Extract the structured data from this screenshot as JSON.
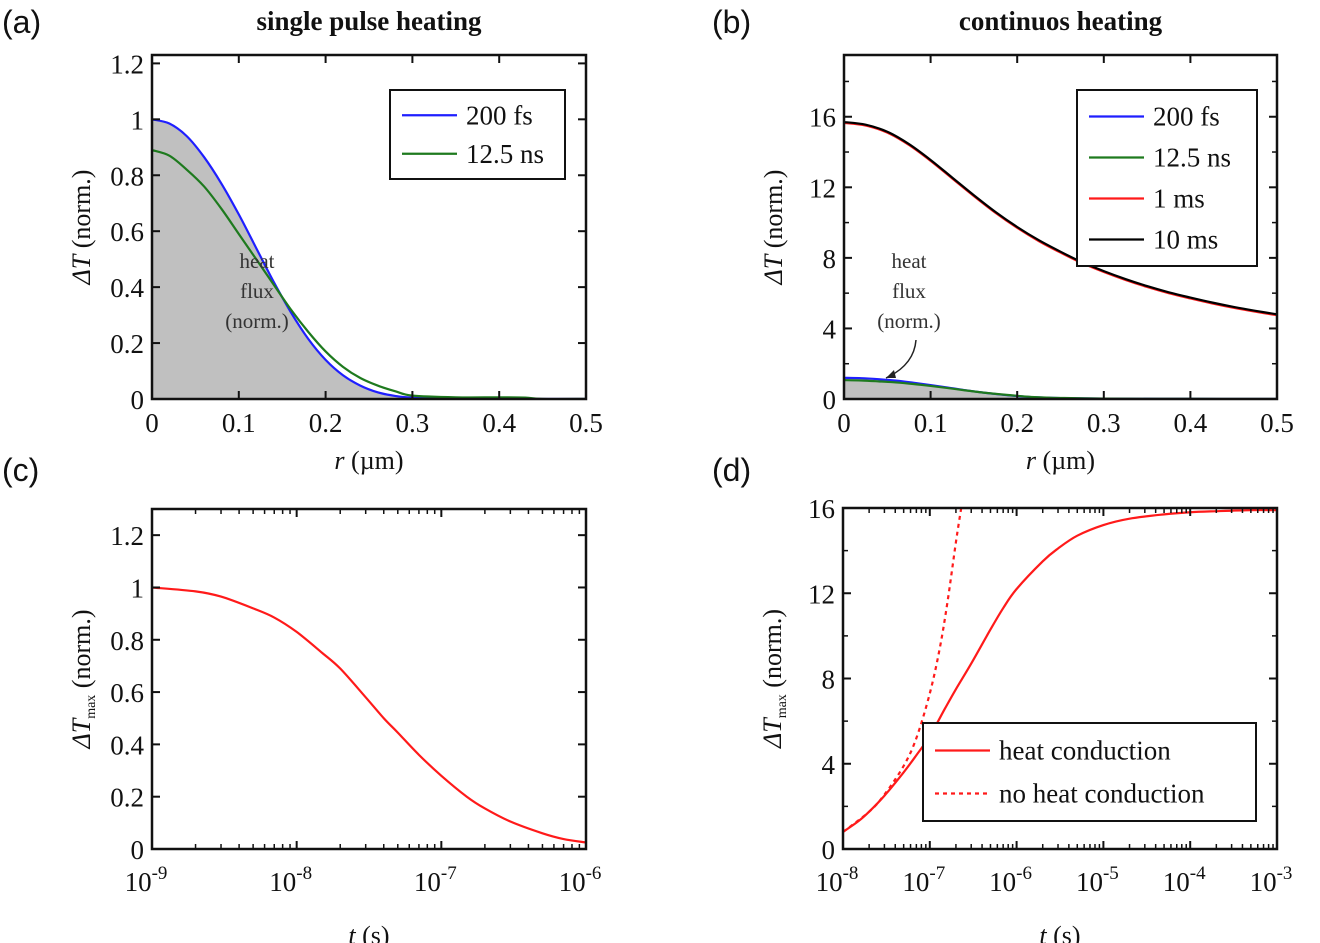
{
  "chart_data": [
    {
      "id": "a",
      "panel_label": "(a)",
      "type": "line",
      "title": "single pulse heating",
      "xlabel": "r (µm)",
      "xlabel_var": "r",
      "xlabel_unit": " (µm)",
      "ylabel": "ΔT (norm.)",
      "ylabel_var": "ΔT",
      "ylabel_unit": " (norm.)",
      "xscale": "linear",
      "xlim": [
        0,
        0.5
      ],
      "ylim": [
        0,
        1.23
      ],
      "xticks": [
        0,
        0.1,
        0.2,
        0.3,
        0.4,
        0.5
      ],
      "xtick_labels": [
        "0",
        "0.1",
        "0.2",
        "0.3",
        "0.4",
        "0.5"
      ],
      "yticks": [
        0,
        0.2,
        0.4,
        0.6,
        0.8,
        1,
        1.2
      ],
      "ytick_labels": [
        "0",
        "0.2",
        "0.4",
        "0.6",
        "0.8",
        "1",
        "1.2"
      ],
      "grid": false,
      "legend_position": "top-right",
      "area": {
        "name": "heat flux (norm.)",
        "color": "#c0c0c0",
        "x": [
          0,
          0.02,
          0.04,
          0.06,
          0.08,
          0.1,
          0.12,
          0.14,
          0.16,
          0.18,
          0.2,
          0.22,
          0.24,
          0.26,
          0.28,
          0.3,
          0.35,
          0.5
        ],
        "y": [
          1.0,
          0.985,
          0.94,
          0.865,
          0.77,
          0.66,
          0.54,
          0.42,
          0.31,
          0.215,
          0.14,
          0.085,
          0.045,
          0.022,
          0.01,
          0.004,
          0.0,
          0.0
        ]
      },
      "annotation": [
        "heat",
        "flux",
        "(norm.)"
      ],
      "series": [
        {
          "name": "200 fs",
          "color": "#1f1fff",
          "dash": false,
          "x": [
            0,
            0.02,
            0.04,
            0.06,
            0.08,
            0.1,
            0.12,
            0.14,
            0.16,
            0.18,
            0.2,
            0.22,
            0.24,
            0.26,
            0.28,
            0.3,
            0.35,
            0.4,
            0.45,
            0.5
          ],
          "y": [
            1.0,
            0.985,
            0.94,
            0.865,
            0.77,
            0.66,
            0.54,
            0.42,
            0.31,
            0.215,
            0.14,
            0.085,
            0.048,
            0.024,
            0.011,
            0.005,
            0.002,
            0.001,
            0.0,
            0.0
          ]
        },
        {
          "name": "12.5 ns",
          "color": "#1e7a1e",
          "dash": false,
          "x": [
            0,
            0.02,
            0.04,
            0.06,
            0.08,
            0.1,
            0.12,
            0.14,
            0.16,
            0.18,
            0.2,
            0.22,
            0.24,
            0.26,
            0.28,
            0.3,
            0.35,
            0.4,
            0.43,
            0.45,
            0.5
          ],
          "y": [
            0.89,
            0.87,
            0.82,
            0.76,
            0.68,
            0.59,
            0.5,
            0.41,
            0.32,
            0.24,
            0.17,
            0.115,
            0.075,
            0.048,
            0.028,
            0.012,
            0.006,
            0.006,
            0.005,
            0.0,
            0.0
          ]
        }
      ]
    },
    {
      "id": "b",
      "panel_label": "(b)",
      "type": "line",
      "title": "continuos heating",
      "xlabel": "r (µm)",
      "xlabel_var": "r",
      "xlabel_unit": " (µm)",
      "ylabel": "ΔT (norm.)",
      "ylabel_var": "ΔT",
      "ylabel_unit": " (norm.)",
      "xscale": "linear",
      "xlim": [
        0,
        0.5
      ],
      "ylim": [
        0,
        19.5
      ],
      "xticks": [
        0,
        0.1,
        0.2,
        0.3,
        0.4,
        0.5
      ],
      "xtick_labels": [
        "0",
        "0.1",
        "0.2",
        "0.3",
        "0.4",
        "0.5"
      ],
      "yticks": [
        0,
        4,
        8,
        12,
        16
      ],
      "ytick_labels": [
        "0",
        "4",
        "8",
        "12",
        "16"
      ],
      "yminor": [
        2,
        6,
        10,
        14,
        18
      ],
      "grid": false,
      "legend_position": "top-right",
      "area": {
        "name": "heat flux (norm.)",
        "color": "#c0c0c0",
        "x": [
          0,
          0.02,
          0.04,
          0.06,
          0.08,
          0.1,
          0.12,
          0.14,
          0.16,
          0.18,
          0.2,
          0.22,
          0.25,
          0.3,
          0.5
        ],
        "y": [
          1.2,
          1.18,
          1.12,
          1.04,
          0.92,
          0.79,
          0.65,
          0.5,
          0.37,
          0.26,
          0.17,
          0.1,
          0.04,
          0.0,
          0.0
        ]
      },
      "annotation": [
        "heat",
        "flux",
        "(norm.)"
      ],
      "series": [
        {
          "name": "200 fs",
          "color": "#1f1fff",
          "dash": false,
          "x": [
            0,
            0.02,
            0.04,
            0.06,
            0.08,
            0.1,
            0.12,
            0.14,
            0.16,
            0.18,
            0.2,
            0.22,
            0.25,
            0.3,
            0.4,
            0.5
          ],
          "y": [
            1.2,
            1.18,
            1.12,
            1.04,
            0.92,
            0.79,
            0.65,
            0.5,
            0.37,
            0.26,
            0.17,
            0.1,
            0.05,
            0.02,
            0.005,
            0.0
          ]
        },
        {
          "name": "12.5 ns",
          "color": "#1e7a1e",
          "dash": false,
          "x": [
            0,
            0.02,
            0.04,
            0.06,
            0.08,
            0.1,
            0.12,
            0.14,
            0.16,
            0.18,
            0.2,
            0.22,
            0.25,
            0.3,
            0.4,
            0.5
          ],
          "y": [
            1.07,
            1.05,
            1.0,
            0.94,
            0.85,
            0.74,
            0.62,
            0.49,
            0.37,
            0.27,
            0.18,
            0.11,
            0.06,
            0.02,
            0.005,
            0.0
          ]
        },
        {
          "name": "1 ms",
          "color": "#ff1a1a",
          "dash": false,
          "x": [
            0,
            0.025,
            0.05,
            0.075,
            0.1,
            0.125,
            0.15,
            0.175,
            0.2,
            0.225,
            0.25,
            0.275,
            0.3,
            0.325,
            0.35,
            0.375,
            0.4,
            0.425,
            0.45,
            0.475,
            0.5
          ],
          "y": [
            15.65,
            15.5,
            15.1,
            14.4,
            13.5,
            12.5,
            11.5,
            10.55,
            9.7,
            8.95,
            8.3,
            7.7,
            7.2,
            6.75,
            6.35,
            6.0,
            5.7,
            5.42,
            5.17,
            4.95,
            4.75
          ]
        },
        {
          "name": "10 ms",
          "color": "#000000",
          "dash": false,
          "x": [
            0,
            0.025,
            0.05,
            0.075,
            0.1,
            0.125,
            0.15,
            0.175,
            0.2,
            0.225,
            0.25,
            0.275,
            0.3,
            0.325,
            0.35,
            0.375,
            0.4,
            0.425,
            0.45,
            0.475,
            0.5
          ],
          "y": [
            15.7,
            15.55,
            15.15,
            14.45,
            13.55,
            12.55,
            11.55,
            10.6,
            9.75,
            9.0,
            8.35,
            7.75,
            7.25,
            6.8,
            6.4,
            6.05,
            5.75,
            5.47,
            5.22,
            5.0,
            4.8
          ]
        }
      ]
    },
    {
      "id": "c",
      "panel_label": "(c)",
      "type": "line",
      "title": "",
      "xlabel": "t (s)",
      "xlabel_var": "t",
      "xlabel_unit": " (s)",
      "ylabel": "ΔTmax (norm.)",
      "ylabel_var": "ΔT",
      "ylabel_sub": "max",
      "ylabel_unit": " (norm.)",
      "xscale": "log",
      "xlim": [
        1e-09,
        1e-06
      ],
      "ylim": [
        0,
        1.3
      ],
      "xticks": [
        1e-09,
        1e-08,
        1e-07,
        1e-06
      ],
      "xtick_labels": [
        {
          "base": "10",
          "exp": "-9"
        },
        {
          "base": "10",
          "exp": "-8"
        },
        {
          "base": "10",
          "exp": "-7"
        },
        {
          "base": "10",
          "exp": "-6"
        }
      ],
      "yticks": [
        0,
        0.2,
        0.4,
        0.6,
        0.8,
        1,
        1.2
      ],
      "ytick_labels": [
        "0",
        "0.2",
        "0.4",
        "0.6",
        "0.8",
        "1",
        "1.2"
      ],
      "grid": false,
      "series": [
        {
          "name": "ΔTmax",
          "color": "#ff1a1a",
          "dash": false,
          "x": [
            1e-09,
            2e-09,
            3e-09,
            5e-09,
            7e-09,
            1e-08,
            1.5e-08,
            2e-08,
            3e-08,
            4e-08,
            5e-08,
            7e-08,
            1e-07,
            1.5e-07,
            2e-07,
            3e-07,
            5e-07,
            7e-07,
            1e-06
          ],
          "y": [
            1.0,
            0.985,
            0.965,
            0.92,
            0.885,
            0.83,
            0.75,
            0.69,
            0.58,
            0.5,
            0.445,
            0.36,
            0.28,
            0.2,
            0.155,
            0.105,
            0.06,
            0.038,
            0.025
          ]
        }
      ]
    },
    {
      "id": "d",
      "panel_label": "(d)",
      "type": "line",
      "title": "",
      "xlabel": "t (s)",
      "xlabel_var": "t",
      "xlabel_unit": " (s)",
      "ylabel": "ΔTmax (norm.)",
      "ylabel_var": "ΔT",
      "ylabel_sub": "max",
      "ylabel_unit": " (norm.)",
      "xscale": "log",
      "xlim": [
        1e-08,
        0.001
      ],
      "ylim": [
        0,
        16
      ],
      "xticks": [
        1e-08,
        1e-07,
        1e-06,
        1e-05,
        0.0001,
        0.001
      ],
      "xtick_labels": [
        {
          "base": "10",
          "exp": "-8"
        },
        {
          "base": "10",
          "exp": "-7"
        },
        {
          "base": "10",
          "exp": "-6"
        },
        {
          "base": "10",
          "exp": "-5"
        },
        {
          "base": "10",
          "exp": "-4"
        },
        {
          "base": "10",
          "exp": "-3"
        }
      ],
      "yticks": [
        0,
        4,
        8,
        12,
        16
      ],
      "ytick_labels": [
        "0",
        "4",
        "8",
        "12",
        "16"
      ],
      "yminor": [
        2,
        6,
        10,
        14
      ],
      "grid": false,
      "legend_position": "bottom-right",
      "series": [
        {
          "name": "heat conduction",
          "color": "#ff1a1a",
          "dash": false,
          "x": [
            1e-08,
            1.5e-08,
            2e-08,
            3e-08,
            5e-08,
            7e-08,
            1e-07,
            1.5e-07,
            2e-07,
            3e-07,
            5e-07,
            7e-07,
            1e-06,
            2e-06,
            3e-06,
            5e-06,
            1e-05,
            2e-05,
            5e-05,
            0.0001,
            0.0002,
            0.0005,
            0.001
          ],
          "y": [
            0.8,
            1.3,
            1.75,
            2.5,
            3.6,
            4.4,
            5.3,
            6.6,
            7.5,
            8.7,
            10.3,
            11.3,
            12.2,
            13.5,
            14.1,
            14.7,
            15.2,
            15.5,
            15.7,
            15.8,
            15.85,
            15.9,
            15.9
          ]
        },
        {
          "name": "no heat conduction",
          "color": "#ff1a1a",
          "dash": true,
          "x": [
            1e-08,
            2e-08,
            3e-08,
            5e-08,
            7e-08,
            1e-07,
            1.3e-07,
            1.6e-07,
            2e-07,
            2.3e-07
          ],
          "y": [
            0.8,
            1.75,
            2.55,
            3.9,
            5.2,
            7.3,
            9.4,
            11.6,
            14.4,
            16.0
          ]
        }
      ]
    }
  ]
}
